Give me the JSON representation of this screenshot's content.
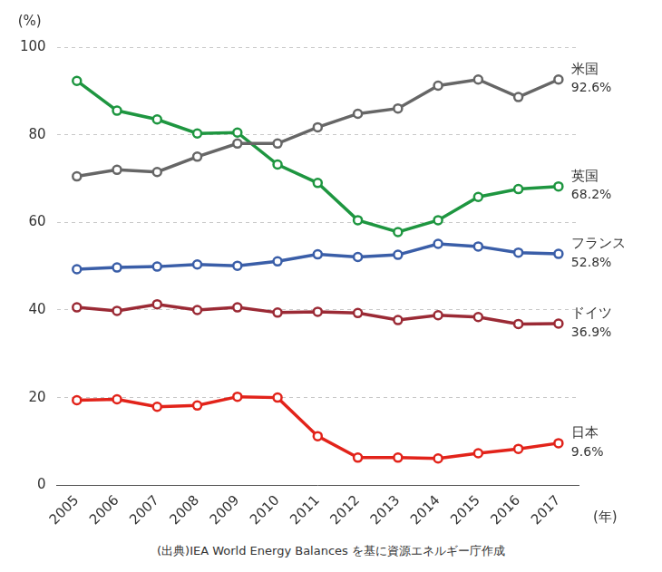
{
  "chart_data": {
    "type": "line",
    "y_label": "(%)",
    "x_label": "(年)",
    "source": "(出典)IEA World Energy Balances を基に資源エネルギー庁作成",
    "categories": [
      "2005",
      "2006",
      "2007",
      "2008",
      "2009",
      "2010",
      "2011",
      "2012",
      "2013",
      "2014",
      "2015",
      "2016",
      "2017"
    ],
    "series": [
      {
        "name": "米国",
        "color": "#666666",
        "end_label": "92.6%",
        "values": [
          70.5,
          72.0,
          71.5,
          75.0,
          78.0,
          78.0,
          81.7,
          84.8,
          86.0,
          91.2,
          92.6,
          88.6,
          92.6
        ]
      },
      {
        "name": "英国",
        "color": "#1e9640",
        "end_label": "68.2%",
        "values": [
          92.3,
          85.5,
          83.5,
          80.3,
          80.5,
          73.2,
          69.0,
          60.5,
          57.8,
          60.5,
          65.8,
          67.6,
          68.2
        ]
      },
      {
        "name": "フランス",
        "color": "#3a5ea8",
        "end_label": "52.8%",
        "values": [
          49.3,
          49.7,
          49.9,
          50.4,
          50.1,
          51.1,
          52.7,
          52.1,
          52.6,
          55.1,
          54.5,
          53.1,
          52.8
        ]
      },
      {
        "name": "ドイツ",
        "color": "#9b2a35",
        "end_label": "36.9%",
        "values": [
          40.6,
          39.8,
          41.3,
          40.0,
          40.6,
          39.4,
          39.6,
          39.3,
          37.7,
          38.8,
          38.4,
          36.8,
          36.9
        ]
      },
      {
        "name": "日本",
        "color": "#e2231a",
        "end_label": "9.6%",
        "values": [
          19.4,
          19.6,
          17.9,
          18.2,
          20.2,
          20.0,
          11.2,
          6.3,
          6.3,
          6.1,
          7.3,
          8.3,
          9.6
        ]
      }
    ],
    "ylim": [
      0,
      100
    ],
    "yticks": [
      0,
      20,
      40,
      60,
      80,
      100
    ],
    "grid": true,
    "marker": "circle",
    "line_style": "solid"
  }
}
